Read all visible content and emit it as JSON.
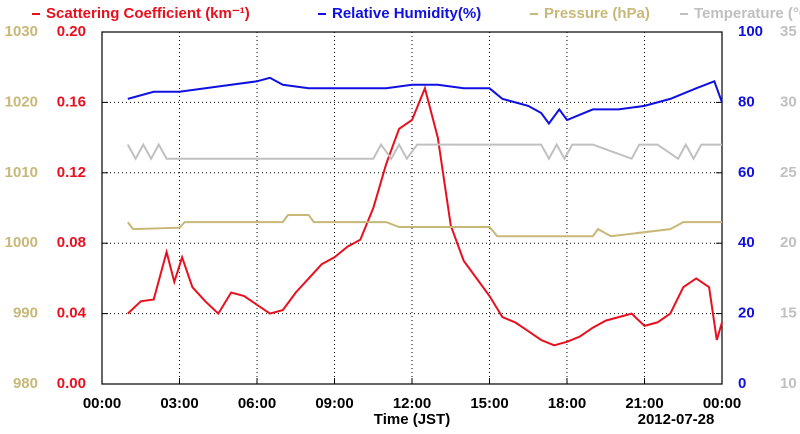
{
  "chart_data": {
    "type": "line",
    "xlabel": "Time (JST)",
    "annotation": "2012-07-28",
    "xlim": [
      0,
      24
    ],
    "xticks": [
      {
        "value": 0,
        "label": "00:00"
      },
      {
        "value": 3,
        "label": "03:00"
      },
      {
        "value": 6,
        "label": "06:00"
      },
      {
        "value": 9,
        "label": "09:00"
      },
      {
        "value": 12,
        "label": "12:00"
      },
      {
        "value": 15,
        "label": "15:00"
      },
      {
        "value": 18,
        "label": "18:00"
      },
      {
        "value": 21,
        "label": "21:00"
      },
      {
        "value": 24,
        "label": "00:00"
      }
    ],
    "grid": true,
    "ylim": [
      0,
      0.2
    ],
    "yticks": [
      {
        "value": 0,
        "label": "0.00"
      },
      {
        "value": 0.04,
        "label": "0.04"
      },
      {
        "value": 0.08,
        "label": "0.08"
      },
      {
        "value": 0.12,
        "label": "0.12"
      },
      {
        "value": 0.16,
        "label": "0.16"
      },
      {
        "value": 0.2,
        "label": "0.20"
      }
    ],
    "y2lim": [
      0,
      100
    ],
    "y2ticks": [
      0,
      20,
      40,
      60,
      80,
      100
    ],
    "y3lim": [
      980,
      1030
    ],
    "y3ticks": [
      980,
      990,
      1000,
      1010,
      1020,
      1030
    ],
    "y4lim": [
      10,
      35
    ],
    "y4ticks": [
      10,
      15,
      20,
      25,
      30,
      35
    ],
    "series": [
      {
        "name": "Scattering Coefficient (km⁻¹)",
        "color": "#e8101e",
        "axis": "y",
        "x": [
          1,
          1.5,
          2,
          2.5,
          2.8,
          3.1,
          3.5,
          4,
          4.5,
          5,
          5.5,
          6,
          6.5,
          7,
          7.5,
          8,
          8.5,
          9,
          9.5,
          10,
          10.5,
          11,
          11.5,
          12,
          12.5,
          13,
          13.5,
          14,
          14.5,
          15,
          15.5,
          16,
          16.5,
          17,
          17.5,
          18,
          18.5,
          19,
          19.5,
          20,
          20.5,
          21,
          21.5,
          22,
          22.5,
          23,
          23.5,
          23.8,
          24
        ],
        "values": [
          0.04,
          0.047,
          0.048,
          0.075,
          0.058,
          0.072,
          0.055,
          0.047,
          0.04,
          0.052,
          0.05,
          0.045,
          0.04,
          0.042,
          0.052,
          0.06,
          0.068,
          0.072,
          0.078,
          0.082,
          0.1,
          0.125,
          0.145,
          0.15,
          0.168,
          0.14,
          0.09,
          0.07,
          0.06,
          0.05,
          0.038,
          0.035,
          0.03,
          0.025,
          0.022,
          0.024,
          0.027,
          0.032,
          0.036,
          0.038,
          0.04,
          0.033,
          0.035,
          0.04,
          0.055,
          0.06,
          0.055,
          0.025,
          0.035
        ]
      },
      {
        "name": "Relative Humidity(%)",
        "color": "#1010e0",
        "axis": "y2",
        "x": [
          1,
          2,
          3,
          4,
          5,
          6,
          6.5,
          7,
          8,
          9,
          10,
          11,
          12,
          13,
          14,
          15,
          15.5,
          16,
          16.5,
          17,
          17.3,
          17.7,
          18,
          19,
          20,
          21,
          22,
          23,
          23.7,
          24
        ],
        "values": [
          81,
          83,
          83,
          84,
          85,
          86,
          87,
          85,
          84,
          84,
          84,
          84,
          85,
          85,
          84,
          84,
          81,
          80,
          79,
          77,
          74,
          78,
          75,
          78,
          78,
          79,
          81,
          84,
          86,
          80
        ]
      },
      {
        "name": "Pressure (hPa)",
        "color": "#c8b878",
        "axis": "y3",
        "x": [
          1,
          1.2,
          3,
          3.2,
          7,
          7.2,
          8,
          8.2,
          11,
          11.5,
          15,
          15.3,
          19,
          19.2,
          19.7,
          22,
          22.5,
          24
        ],
        "values": [
          1003,
          1002,
          1002.2,
          1003,
          1003,
          1004,
          1004,
          1003,
          1003,
          1002.3,
          1002.3,
          1001,
          1001,
          1002,
          1001,
          1002,
          1003,
          1003
        ]
      },
      {
        "name": "Temperature (°C)",
        "color": "#c0c0c0",
        "axis": "y4",
        "x": [
          1,
          1.3,
          1.6,
          1.9,
          2.2,
          2.5,
          4,
          8,
          10.5,
          10.8,
          11.2,
          11.5,
          11.8,
          12.2,
          17,
          17.3,
          17.6,
          17.9,
          18.2,
          19,
          20.5,
          20.8,
          21.5,
          22.3,
          22.6,
          22.9,
          23.2,
          24
        ],
        "values": [
          27,
          26,
          27,
          26,
          27,
          26,
          26,
          26,
          26,
          27,
          26,
          27,
          26,
          27,
          27,
          26,
          27,
          26,
          27,
          27,
          26,
          27,
          27,
          26,
          27,
          26,
          27,
          27
        ]
      }
    ]
  }
}
